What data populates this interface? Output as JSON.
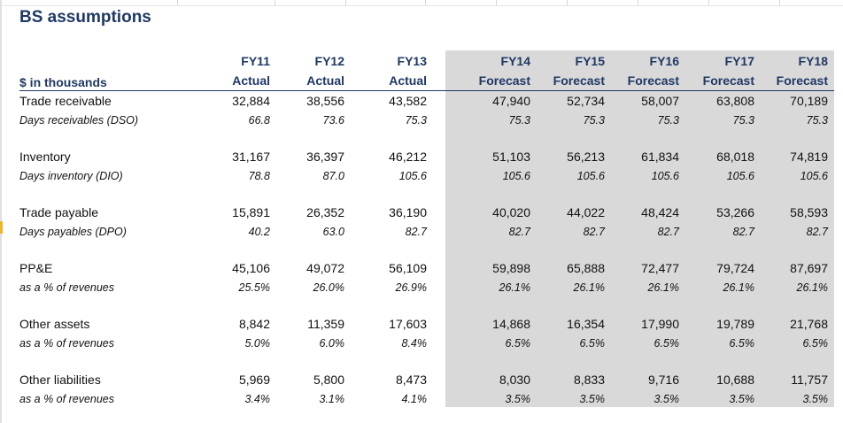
{
  "title": "BS assumptions",
  "units_label": "$ in thousands",
  "columns": [
    {
      "year": "FY11",
      "type": "Actual"
    },
    {
      "year": "FY12",
      "type": "Actual"
    },
    {
      "year": "FY13",
      "type": "Actual"
    },
    {
      "year": "FY14",
      "type": "Forecast"
    },
    {
      "year": "FY15",
      "type": "Forecast"
    },
    {
      "year": "FY16",
      "type": "Forecast"
    },
    {
      "year": "FY17",
      "type": "Forecast"
    },
    {
      "year": "FY18",
      "type": "Forecast"
    }
  ],
  "groups": [
    {
      "label": "Trade receivable",
      "values": [
        "32,884",
        "38,556",
        "43,582",
        "47,940",
        "52,734",
        "58,007",
        "63,808",
        "70,189"
      ],
      "sub_label": "Days receivables (DSO)",
      "sub_values": [
        "66.8",
        "73.6",
        "75.3",
        "75.3",
        "75.3",
        "75.3",
        "75.3",
        "75.3"
      ]
    },
    {
      "label": "Inventory",
      "values": [
        "31,167",
        "36,397",
        "46,212",
        "51,103",
        "56,213",
        "61,834",
        "68,018",
        "74,819"
      ],
      "sub_label": "Days inventory (DIO)",
      "sub_values": [
        "78.8",
        "87.0",
        "105.6",
        "105.6",
        "105.6",
        "105.6",
        "105.6",
        "105.6"
      ]
    },
    {
      "label": "Trade payable",
      "values": [
        "15,891",
        "26,352",
        "36,190",
        "40,020",
        "44,022",
        "48,424",
        "53,266",
        "58,593"
      ],
      "sub_label": "Days payables (DPO)",
      "sub_values": [
        "40.2",
        "63.0",
        "82.7",
        "82.7",
        "82.7",
        "82.7",
        "82.7",
        "82.7"
      ]
    },
    {
      "label": "PP&E",
      "values": [
        "45,106",
        "49,072",
        "56,109",
        "59,898",
        "65,888",
        "72,477",
        "79,724",
        "87,697"
      ],
      "sub_label": "as a % of revenues",
      "sub_values": [
        "25.5%",
        "26.0%",
        "26.9%",
        "26.1%",
        "26.1%",
        "26.1%",
        "26.1%",
        "26.1%"
      ]
    },
    {
      "label": "Other assets",
      "values": [
        "8,842",
        "11,359",
        "17,603",
        "14,868",
        "16,354",
        "17,990",
        "19,789",
        "21,768"
      ],
      "sub_label": "as a % of revenues",
      "sub_values": [
        "5.0%",
        "6.0%",
        "8.4%",
        "6.5%",
        "6.5%",
        "6.5%",
        "6.5%",
        "6.5%"
      ]
    },
    {
      "label": "Other liabilities",
      "values": [
        "5,969",
        "5,800",
        "8,473",
        "8,030",
        "8,833",
        "9,716",
        "10,688",
        "11,757"
      ],
      "sub_label": "as a % of revenues",
      "sub_values": [
        "3.4%",
        "3.1%",
        "4.1%",
        "3.5%",
        "3.5%",
        "3.5%",
        "3.5%",
        "3.5%"
      ]
    }
  ],
  "colors": {
    "header_text": "#1f3864",
    "forecast_shade": "#d9d9d9"
  }
}
